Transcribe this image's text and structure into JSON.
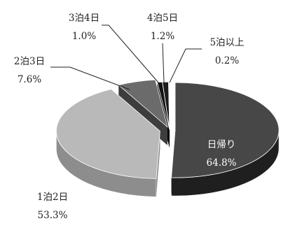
{
  "chart_data": {
    "type": "pie",
    "variant": "3d-exploded",
    "legend": "none",
    "slices": [
      {
        "name": "日帰り",
        "value": 64.8,
        "value_label": "64.8%",
        "label_inside": true
      },
      {
        "name": "1泊2日",
        "value": 53.3,
        "value_label": "53.3%"
      },
      {
        "name": "2泊3日",
        "value": 7.6,
        "value_label": "7.6%"
      },
      {
        "name": "3泊4日",
        "value": 1.0,
        "value_label": "1.0%"
      },
      {
        "name": "4泊5日",
        "value": 1.2,
        "value_label": "1.2%"
      },
      {
        "name": "5泊以上",
        "value": 0.2,
        "value_label": "0.2%"
      }
    ]
  }
}
